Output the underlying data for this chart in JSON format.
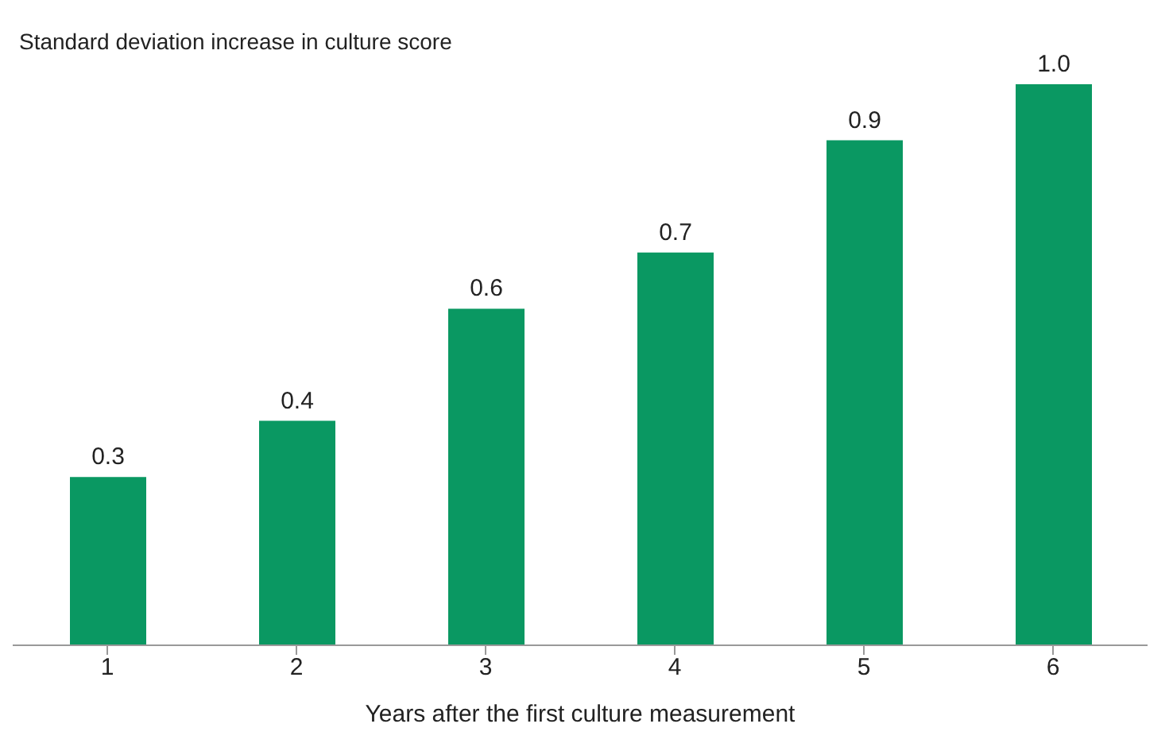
{
  "chart_data": {
    "type": "bar",
    "ylabel": "Standard deviation increase in culture score",
    "xlabel": "Years after the first culture measurement",
    "categories": [
      "1",
      "2",
      "3",
      "4",
      "5",
      "6"
    ],
    "values": [
      0.3,
      0.4,
      0.6,
      0.7,
      0.9,
      1.0
    ],
    "value_labels": [
      "0.3",
      "0.4",
      "0.6",
      "0.7",
      "0.9",
      "1.0"
    ],
    "color": "#0a9862"
  }
}
